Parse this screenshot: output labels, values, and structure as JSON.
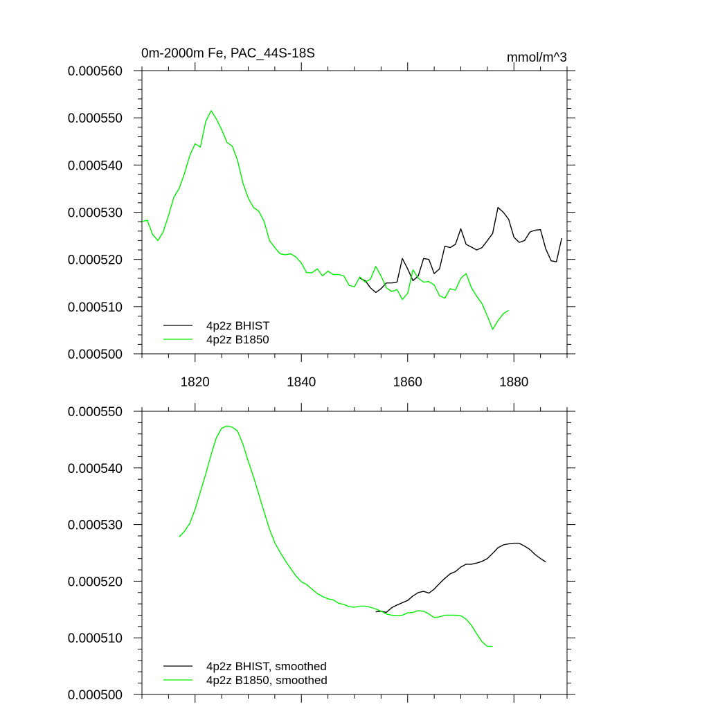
{
  "chart_data": [
    {
      "type": "line",
      "title": "0m-2000m Fe, PAC_44S-18S",
      "units": "mmol/m^3",
      "xlim": [
        1810,
        1890
      ],
      "ylim": [
        0.0005,
        0.00056
      ],
      "x_ticks": [
        1820,
        1840,
        1860,
        1880
      ],
      "x_tick_labels": [
        "1820",
        "1840",
        "1860",
        "1880"
      ],
      "y_ticks": [
        0.0005,
        0.00051,
        0.00052,
        0.00053,
        0.00054,
        0.00055,
        0.00056
      ],
      "y_tick_labels": [
        "0.000500",
        "0.000510",
        "0.000520",
        "0.000530",
        "0.000540",
        "0.000550",
        "0.000560"
      ],
      "grid": false,
      "legend_position": "bottom-left",
      "series": [
        {
          "name": "4p2z BHIST",
          "color": "#000000",
          "x": [
            1851,
            1852,
            1853,
            1854,
            1855,
            1856,
            1857,
            1858,
            1859,
            1860,
            1861,
            1862,
            1863,
            1864,
            1865,
            1866,
            1867,
            1868,
            1869,
            1870,
            1871,
            1872,
            1873,
            1874,
            1875,
            1876,
            1877,
            1878,
            1879,
            1880,
            1881,
            1882,
            1883,
            1884,
            1885,
            1886,
            1887,
            1888,
            1889
          ],
          "y": [
            0.000516,
            0.0005155,
            0.000514,
            0.000513,
            0.0005138,
            0.000515,
            0.000515,
            0.0005152,
            0.0005202,
            0.000518,
            0.0005155,
            0.0005165,
            0.0005202,
            0.00052,
            0.000517,
            0.000518,
            0.0005228,
            0.0005225,
            0.0005232,
            0.0005265,
            0.0005232,
            0.0005226,
            0.000522,
            0.0005225,
            0.000524,
            0.0005255,
            0.000531,
            0.00053,
            0.0005285,
            0.0005247,
            0.0005236,
            0.000524,
            0.0005258,
            0.0005262,
            0.0005263,
            0.0005222,
            0.0005197,
            0.0005195,
            0.0005245
          ]
        },
        {
          "name": "4p2z B1850",
          "color": "#00ee00",
          "x": [
            1810,
            1811,
            1812,
            1813,
            1814,
            1815,
            1816,
            1817,
            1818,
            1819,
            1820,
            1821,
            1822,
            1823,
            1824,
            1825,
            1826,
            1827,
            1828,
            1829,
            1830,
            1831,
            1832,
            1833,
            1834,
            1835,
            1836,
            1837,
            1838,
            1839,
            1840,
            1841,
            1842,
            1843,
            1844,
            1845,
            1846,
            1847,
            1848,
            1849,
            1850,
            1851,
            1852,
            1853,
            1854,
            1855,
            1856,
            1857,
            1858,
            1859,
            1860,
            1861,
            1862,
            1863,
            1864,
            1865,
            1866,
            1867,
            1868,
            1869,
            1870,
            1871,
            1872,
            1873,
            1874,
            1875,
            1876,
            1877,
            1878,
            1879
          ],
          "y": [
            0.000528,
            0.0005283,
            0.0005253,
            0.000524,
            0.0005258,
            0.0005293,
            0.0005332,
            0.000535,
            0.0005382,
            0.000542,
            0.0005445,
            0.0005438,
            0.0005492,
            0.0005515,
            0.0005498,
            0.0005475,
            0.0005448,
            0.000544,
            0.000541,
            0.0005362,
            0.000533,
            0.000531,
            0.0005302,
            0.000528,
            0.000524,
            0.0005225,
            0.0005212,
            0.000521,
            0.0005212,
            0.0005205,
            0.0005192,
            0.0005172,
            0.0005172,
            0.000518,
            0.0005165,
            0.0005175,
            0.0005168,
            0.0005168,
            0.0005165,
            0.0005145,
            0.0005142,
            0.0005163,
            0.0005152,
            0.0005158,
            0.0005185,
            0.0005165,
            0.000514,
            0.0005132,
            0.0005136,
            0.0005115,
            0.0005128,
            0.0005178,
            0.000516,
            0.0005152,
            0.0005153,
            0.0005146,
            0.0005123,
            0.0005118,
            0.0005138,
            0.0005135,
            0.000516,
            0.000517,
            0.000514,
            0.0005122,
            0.0005106,
            0.000508,
            0.0005052,
            0.000507,
            0.0005085,
            0.0005092
          ]
        }
      ]
    },
    {
      "type": "line",
      "xlim": [
        1810,
        1890
      ],
      "ylim": [
        0.0005,
        0.00055
      ],
      "x_ticks": [
        1820,
        1840,
        1860,
        1880
      ],
      "y_ticks": [
        0.0005,
        0.00051,
        0.00052,
        0.00053,
        0.00054,
        0.00055
      ],
      "y_tick_labels": [
        "0.000500",
        "0.000510",
        "0.000520",
        "0.000530",
        "0.000540",
        "0.000550"
      ],
      "grid": false,
      "legend_position": "bottom-left",
      "series": [
        {
          "name": "4p2z BHIST, smoothed",
          "color": "#000000",
          "x": [
            1854,
            1855,
            1856,
            1857,
            1858,
            1859,
            1860,
            1861,
            1862,
            1863,
            1864,
            1865,
            1866,
            1867,
            1868,
            1869,
            1870,
            1871,
            1872,
            1873,
            1874,
            1875,
            1876,
            1877,
            1878,
            1879,
            1880,
            1881,
            1882,
            1883,
            1884,
            1885,
            1886
          ],
          "y": [
            0.0005146,
            0.0005147,
            0.0005145,
            0.0005153,
            0.0005158,
            0.0005162,
            0.0005166,
            0.0005174,
            0.000518,
            0.0005182,
            0.0005179,
            0.0005186,
            0.0005196,
            0.0005205,
            0.0005213,
            0.0005217,
            0.0005225,
            0.000523,
            0.000523,
            0.0005232,
            0.0005235,
            0.000524,
            0.0005249,
            0.0005259,
            0.0005264,
            0.0005266,
            0.0005267,
            0.0005267,
            0.0005262,
            0.0005256,
            0.0005247,
            0.000524,
            0.0005234
          ]
        },
        {
          "name": "4p2z B1850, smoothed",
          "color": "#00ee00",
          "x": [
            1817,
            1818,
            1819,
            1820,
            1821,
            1822,
            1823,
            1824,
            1825,
            1826,
            1827,
            1828,
            1829,
            1830,
            1831,
            1832,
            1833,
            1834,
            1835,
            1836,
            1837,
            1838,
            1839,
            1840,
            1841,
            1842,
            1843,
            1844,
            1845,
            1846,
            1847,
            1848,
            1849,
            1850,
            1851,
            1852,
            1853,
            1854,
            1855,
            1856,
            1857,
            1858,
            1859,
            1860,
            1861,
            1862,
            1863,
            1864,
            1865,
            1866,
            1867,
            1868,
            1869,
            1870,
            1871,
            1872,
            1873,
            1874,
            1875,
            1876
          ],
          "y": [
            0.0005278,
            0.0005288,
            0.0005302,
            0.0005327,
            0.0005358,
            0.0005389,
            0.0005423,
            0.0005453,
            0.000547,
            0.0005474,
            0.0005472,
            0.0005465,
            0.0005442,
            0.0005412,
            0.0005384,
            0.0005353,
            0.0005322,
            0.0005292,
            0.0005268,
            0.0005251,
            0.0005236,
            0.0005222,
            0.0005209,
            0.0005199,
            0.0005194,
            0.0005186,
            0.0005178,
            0.0005173,
            0.0005169,
            0.0005167,
            0.0005161,
            0.0005159,
            0.0005155,
            0.0005154,
            0.0005156,
            0.0005156,
            0.0005154,
            0.0005151,
            0.0005147,
            0.0005142,
            0.000514,
            0.0005139,
            0.000514,
            0.0005144,
            0.0005145,
            0.0005148,
            0.0005147,
            0.0005142,
            0.0005136,
            0.0005137,
            0.000514,
            0.000514,
            0.000514,
            0.0005139,
            0.0005133,
            0.0005122,
            0.0005107,
            0.0005093,
            0.0005085,
            0.0005085
          ]
        }
      ]
    }
  ]
}
